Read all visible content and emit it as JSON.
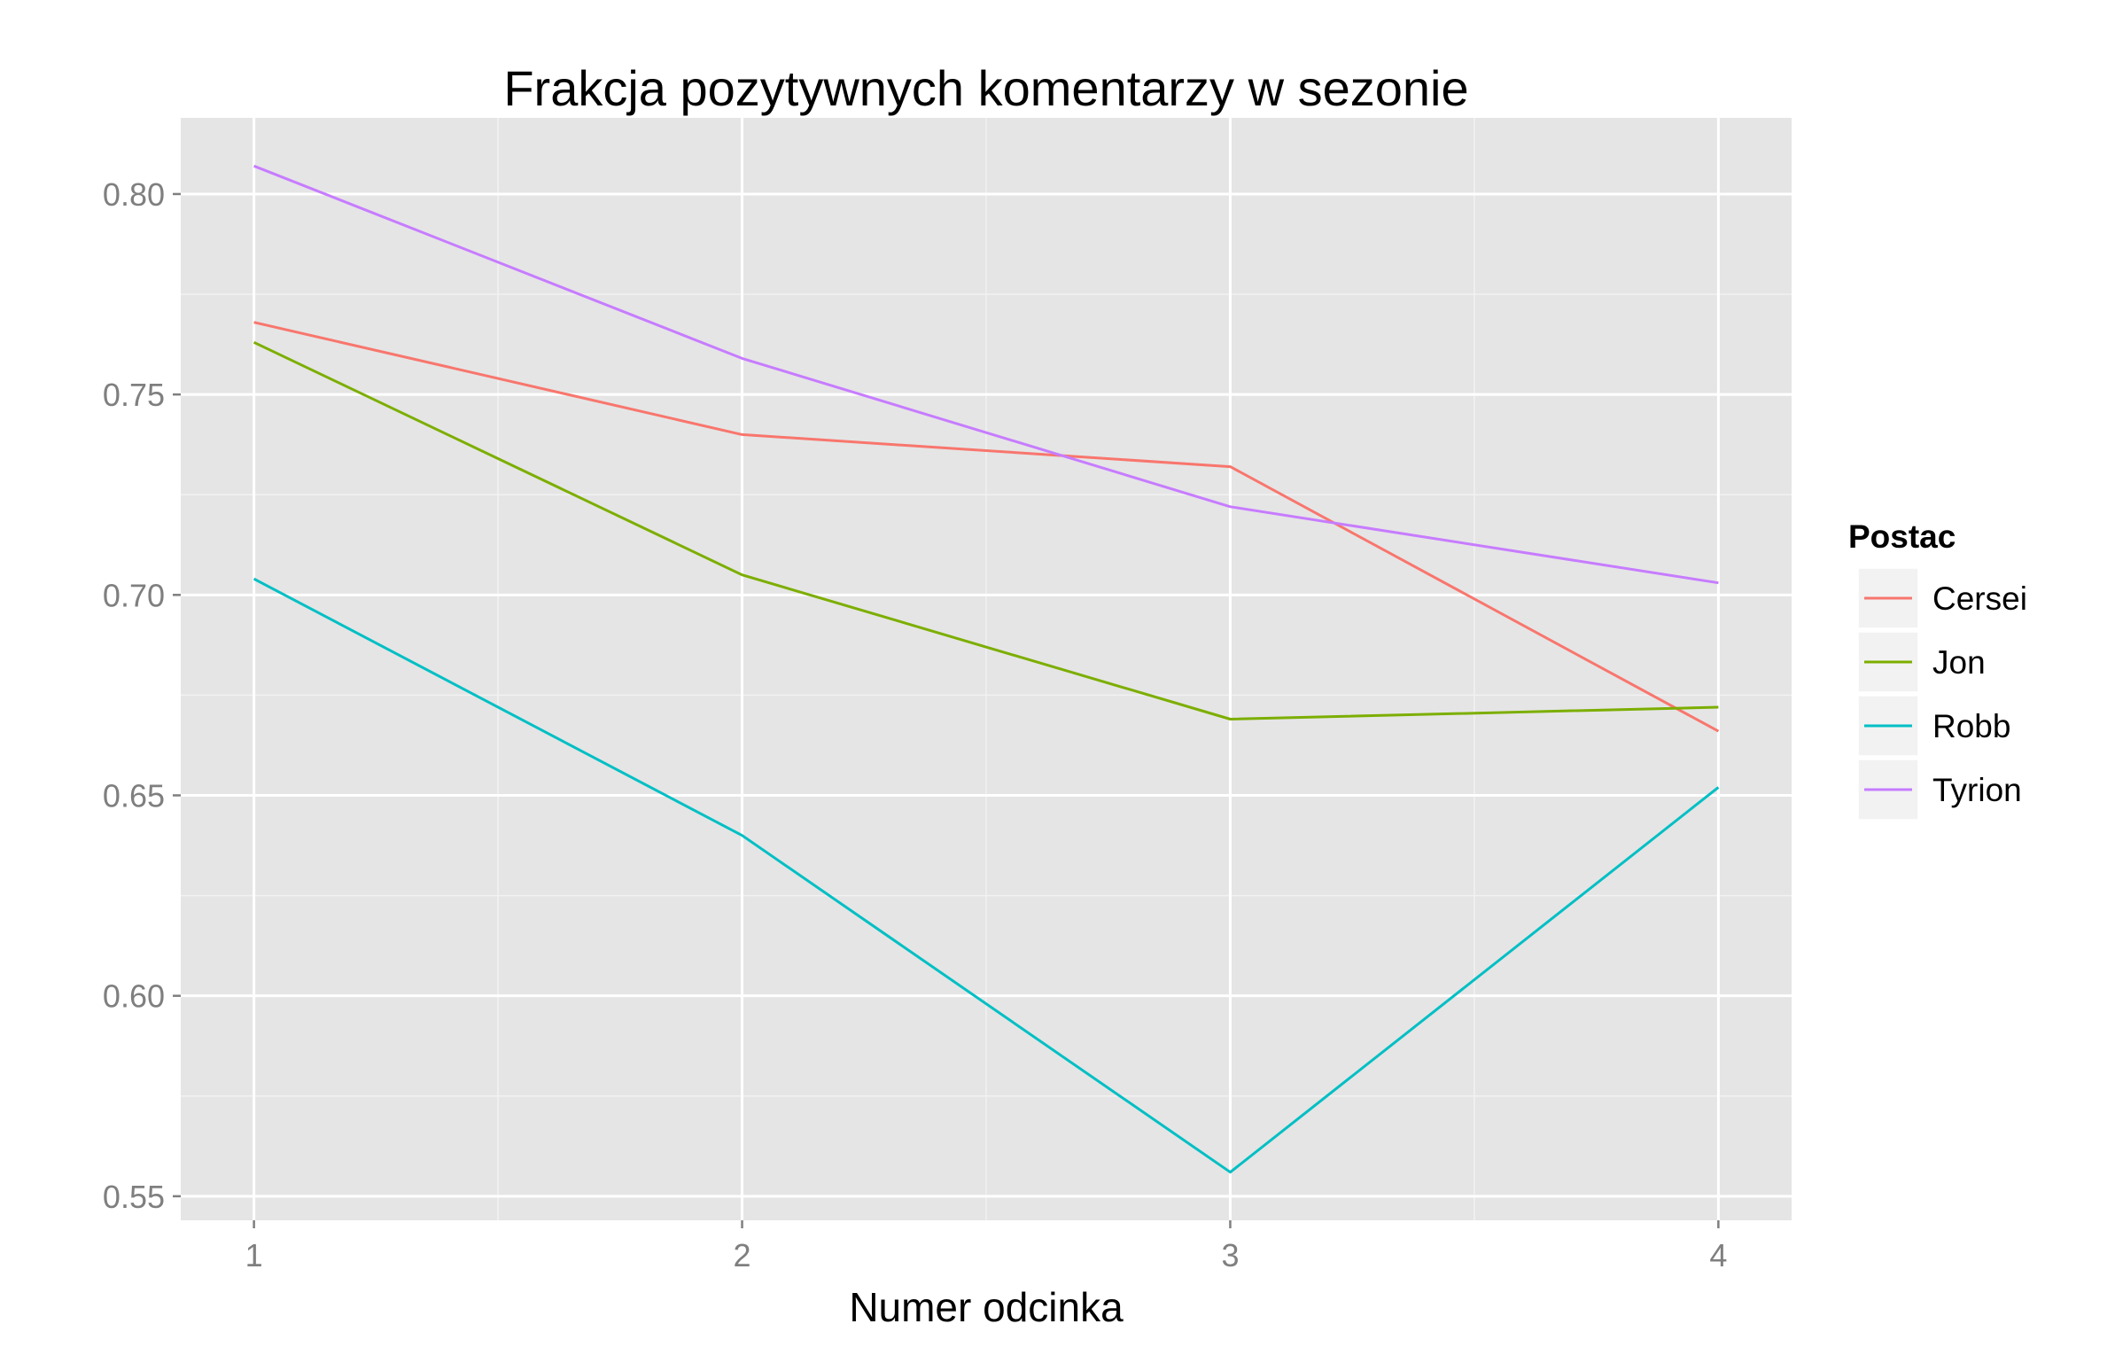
{
  "chart_data": {
    "type": "line",
    "title": "Frakcja pozytywnych komentarzy w sezonie",
    "xlabel": "Numer odcinka",
    "ylabel": "",
    "x": [
      1,
      2,
      3,
      4
    ],
    "x_tick_labels": [
      "1",
      "2",
      "3",
      "4"
    ],
    "xlim": [
      0.85,
      4.15
    ],
    "ylim": [
      0.544,
      0.819
    ],
    "y_ticks": [
      0.55,
      0.6,
      0.65,
      0.7,
      0.75,
      0.8
    ],
    "y_tick_labels": [
      "0.55",
      "0.60",
      "0.65",
      "0.70",
      "0.75",
      "0.80"
    ],
    "grid": true,
    "legend": {
      "title": "Postac",
      "position": "right"
    },
    "series": [
      {
        "name": "Cersei",
        "color": "#F8766D",
        "values": [
          0.768,
          0.74,
          0.732,
          0.666
        ]
      },
      {
        "name": "Jon",
        "color": "#7CAE00",
        "values": [
          0.763,
          0.705,
          0.669,
          0.672
        ]
      },
      {
        "name": "Robb",
        "color": "#00BFC4",
        "values": [
          0.704,
          0.64,
          0.556,
          0.652
        ]
      },
      {
        "name": "Tyrion",
        "color": "#C77CFF",
        "values": [
          0.807,
          0.759,
          0.722,
          0.703
        ]
      }
    ],
    "panel_background": "#E5E5E5",
    "grid_color": "#FFFFFF"
  }
}
